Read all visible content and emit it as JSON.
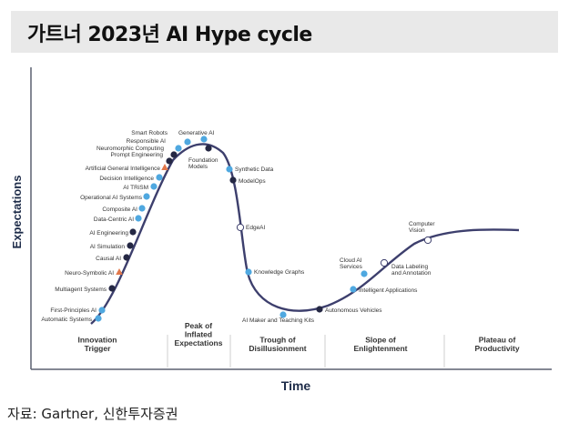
{
  "title": "가트너 2023년 AI Hype cycle",
  "source": "자료: Gartner, 신한투자증권",
  "colors": {
    "curve": "#3d3f6d",
    "dark_dot": "#252844",
    "light_dot": "#4fa8e0",
    "orange_dot": "#e2774a",
    "hollow_dot": "#ffffff",
    "axis_text": "#1f2d4a",
    "title_bg": "#e9e9e9"
  },
  "chart_data": {
    "type": "line",
    "title": "가트너 2023년 AI Hype cycle",
    "xlabel": "Time",
    "ylabel": "Expectations",
    "grid": false,
    "stages": [
      "Innovation\nTrigger",
      "Peak of\nInflated\nExpectations",
      "Trough of\nDisillusionment",
      "Slope of\nEnlightenment",
      "Plateau of\nProductivity"
    ],
    "technologies": [
      {
        "name": "Automatic Systems",
        "type": "light"
      },
      {
        "name": "First-Principles AI",
        "type": "light"
      },
      {
        "name": "Multiagent Systems",
        "type": "dark"
      },
      {
        "name": "Neuro-Symbolic AI",
        "type": "orange"
      },
      {
        "name": "Causal AI",
        "type": "dark"
      },
      {
        "name": "AI Simulation",
        "type": "dark"
      },
      {
        "name": "AI Engineering",
        "type": "dark"
      },
      {
        "name": "Data-Centric AI",
        "type": "light"
      },
      {
        "name": "Composite AI",
        "type": "light"
      },
      {
        "name": "Operational AI Systems",
        "type": "light"
      },
      {
        "name": "AI TRiSM",
        "type": "light"
      },
      {
        "name": "Decision Intelligence",
        "type": "light"
      },
      {
        "name": "Artificial General Intelligence",
        "type": "orange"
      },
      {
        "name": "Prompt Engineering",
        "type": "dark"
      },
      {
        "name": "Neuromorphic Computing",
        "type": "dark"
      },
      {
        "name": "Responsible AI",
        "type": "light"
      },
      {
        "name": "Smart Robots",
        "type": "light"
      },
      {
        "name": "Generative AI",
        "type": "light"
      },
      {
        "name": "Foundation\nModels",
        "type": "dark"
      },
      {
        "name": "Synthetic Data",
        "type": "light"
      },
      {
        "name": "ModelOps",
        "type": "dark"
      },
      {
        "name": "EdgeAI",
        "type": "hollow"
      },
      {
        "name": "Knowledge Graphs",
        "type": "light"
      },
      {
        "name": "AI Maker and Teaching Kits",
        "type": "light"
      },
      {
        "name": "Autonomous Vehicles",
        "type": "dark"
      },
      {
        "name": "Intelligent Applications",
        "type": "light"
      },
      {
        "name": "Cloud AI\nServices",
        "type": "light"
      },
      {
        "name": "Data Labeling\nand Annotation",
        "type": "hollow"
      },
      {
        "name": "Computer\nVision",
        "type": "hollow"
      }
    ]
  }
}
